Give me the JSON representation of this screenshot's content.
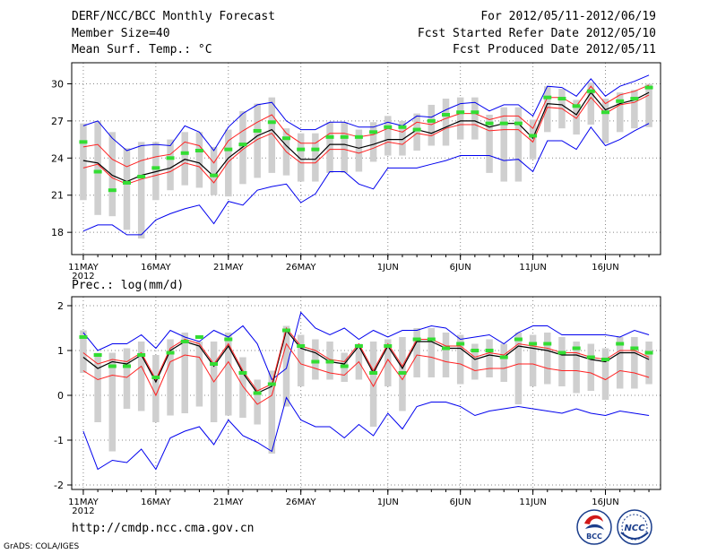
{
  "header": {
    "title": "DERF/NCC/BCC Monthly Forecast",
    "member_size": "Member Size=40",
    "variable": "Mean Surf. Temp.: °C",
    "period": "For 2012/05/11-2012/06/19",
    "started": "Fcst Started Refer Date 2012/05/10",
    "produced": "Fcst Produced Date 2012/05/11"
  },
  "footer": {
    "url": "http://cmdp.ncc.cma.gov.cn",
    "grads": "GrADS: COLA/IGES",
    "logo_bcc": "BCC",
    "logo_ncc": "NCC"
  },
  "colors": {
    "spread_box": "#cfcfcf",
    "observation": "#33dd33",
    "ensemble_mean": "#000000",
    "member_bounds": "#ff2222",
    "envelope": "#0000ee",
    "grid": "#888888"
  },
  "chart_data": [
    {
      "type": "line",
      "title": "Mean Surf. Temp.: °C",
      "x_start_label": "11MAY",
      "x_year": "2012",
      "x_tick_labels": [
        "11MAY",
        "16MAY",
        "21MAY",
        "26MAY",
        "1JUN",
        "6JUN",
        "11JUN",
        "16JUN"
      ],
      "x_tick_days": [
        0,
        5,
        10,
        15,
        21,
        26,
        31,
        36
      ],
      "xlim": [
        -0.8,
        39.8
      ],
      "ylim": [
        16.2,
        31.7
      ],
      "yticks": [
        18,
        21,
        24,
        27,
        30
      ],
      "days": 40,
      "series": [
        {
          "name": "envelope_max",
          "values": [
            26.6,
            27.0,
            25.6,
            24.6,
            25.0,
            25.1,
            25.0,
            26.6,
            26.1,
            24.6,
            26.5,
            27.6,
            28.3,
            28.5,
            27.0,
            26.3,
            26.3,
            26.9,
            26.9,
            26.5,
            26.5,
            26.9,
            26.6,
            27.4,
            27.3,
            27.9,
            28.4,
            28.5,
            27.8,
            28.3,
            28.3,
            27.4,
            29.8,
            29.7,
            29.0,
            30.4,
            29.0,
            29.8,
            30.2,
            30.7
          ]
        },
        {
          "name": "member_upper",
          "values": [
            24.9,
            25.1,
            23.9,
            23.3,
            23.8,
            24.1,
            24.3,
            25.3,
            25.0,
            23.6,
            25.4,
            26.2,
            26.9,
            27.5,
            26.0,
            25.2,
            25.2,
            26.0,
            26.0,
            25.7,
            25.9,
            26.4,
            26.1,
            26.9,
            26.7,
            27.2,
            27.6,
            27.6,
            27.1,
            27.4,
            27.4,
            26.4,
            28.9,
            28.9,
            28.2,
            29.8,
            28.4,
            29.1,
            29.4,
            29.9
          ]
        },
        {
          "name": "ensemble_mean",
          "values": [
            23.8,
            23.6,
            22.6,
            22.1,
            22.6,
            22.9,
            23.2,
            23.9,
            23.6,
            22.5,
            24.0,
            24.9,
            25.8,
            26.3,
            25.0,
            23.9,
            23.9,
            25.1,
            25.1,
            24.8,
            25.1,
            25.5,
            25.5,
            26.3,
            26.0,
            26.5,
            27.0,
            27.0,
            26.5,
            26.8,
            26.8,
            25.6,
            28.4,
            28.3,
            27.5,
            29.3,
            27.9,
            28.4,
            28.7,
            29.3
          ]
        },
        {
          "name": "member_lower",
          "values": [
            23.2,
            23.5,
            22.4,
            21.9,
            22.3,
            22.6,
            22.9,
            23.6,
            23.3,
            22.0,
            23.7,
            24.7,
            25.5,
            26.0,
            24.5,
            23.6,
            23.6,
            24.7,
            24.7,
            24.4,
            24.8,
            25.3,
            25.1,
            26.0,
            25.8,
            26.4,
            26.7,
            26.7,
            26.2,
            26.3,
            26.3,
            25.3,
            28.1,
            28.0,
            27.2,
            28.9,
            27.6,
            28.3,
            28.5,
            29.1
          ]
        },
        {
          "name": "envelope_min",
          "values": [
            18.1,
            18.6,
            18.6,
            17.8,
            17.8,
            19.0,
            19.5,
            19.9,
            20.2,
            18.7,
            20.5,
            20.2,
            21.4,
            21.7,
            21.9,
            20.4,
            21.1,
            22.9,
            22.9,
            21.9,
            21.5,
            23.2,
            23.2,
            23.2,
            23.5,
            23.8,
            24.2,
            24.2,
            24.2,
            23.8,
            23.9,
            22.9,
            25.4,
            25.4,
            24.7,
            26.5,
            25.0,
            25.5,
            26.2,
            26.8
          ]
        },
        {
          "name": "observed",
          "values": [
            25.3,
            22.9,
            21.4,
            22.0,
            22.5,
            23.2,
            24.0,
            24.4,
            24.6,
            22.6,
            24.7,
            25.1,
            26.2,
            26.9,
            25.6,
            24.7,
            24.7,
            25.7,
            25.7,
            25.7,
            26.1,
            26.5,
            26.5,
            26.3,
            27.0,
            27.5,
            27.7,
            27.7,
            26.8,
            26.8,
            26.8,
            25.8,
            28.9,
            28.8,
            28.2,
            29.4,
            27.7,
            28.6,
            28.8,
            29.7
          ]
        }
      ],
      "box_top": [
        26.8,
        27.0,
        26.1,
        24.8,
        25.3,
        25.3,
        25.5,
        26.1,
        26.1,
        24.9,
        26.3,
        27.8,
        28.4,
        28.9,
        26.4,
        26.0,
        26.0,
        26.9,
        26.9,
        26.3,
        26.9,
        27.4,
        27.0,
        27.6,
        28.3,
        28.8,
        28.9,
        28.9,
        27.5,
        28.1,
        28.1,
        27.1,
        29.8,
        29.6,
        28.7,
        30.1,
        28.8,
        29.3,
        29.5,
        30.0
      ],
      "box_bottom": [
        20.6,
        19.4,
        19.3,
        18.2,
        17.5,
        20.6,
        21.4,
        21.8,
        21.6,
        21.0,
        20.9,
        21.9,
        22.4,
        22.8,
        22.6,
        22.1,
        22.1,
        22.8,
        22.8,
        22.9,
        23.7,
        24.2,
        24.2,
        24.6,
        25.0,
        25.0,
        25.5,
        25.5,
        22.8,
        22.1,
        22.1,
        23.9,
        26.1,
        26.4,
        25.9,
        26.7,
        25.2,
        26.1,
        26.4,
        26.5
      ]
    },
    {
      "type": "line",
      "title": "Prec.: log(mm/d)",
      "x_start_label": "11MAY",
      "x_year": "2012",
      "x_tick_labels": [
        "11MAY",
        "16MAY",
        "21MAY",
        "26MAY",
        "1JUN",
        "6JUN",
        "11JUN",
        "16JUN"
      ],
      "x_tick_days": [
        0,
        5,
        10,
        15,
        21,
        26,
        31,
        36
      ],
      "xlim": [
        -0.8,
        39.8
      ],
      "ylim": [
        -2.1,
        2.2
      ],
      "yticks": [
        -2,
        -1,
        0,
        1,
        2
      ],
      "days": 40,
      "series": [
        {
          "name": "envelope_max",
          "values": [
            1.4,
            1.0,
            1.15,
            1.15,
            1.35,
            1.05,
            1.45,
            1.3,
            1.2,
            1.45,
            1.3,
            1.55,
            1.15,
            0.35,
            0.6,
            1.85,
            1.5,
            1.35,
            1.5,
            1.25,
            1.45,
            1.3,
            1.45,
            1.45,
            1.55,
            1.5,
            1.25,
            1.3,
            1.35,
            1.15,
            1.4,
            1.55,
            1.55,
            1.35,
            1.35,
            1.35,
            1.35,
            1.3,
            1.45,
            1.35
          ]
        },
        {
          "name": "ensemble_mean",
          "values": [
            0.85,
            0.6,
            0.75,
            0.7,
            0.9,
            0.3,
            1.0,
            1.2,
            1.1,
            0.65,
            1.1,
            0.5,
            0.05,
            0.2,
            1.45,
            1.05,
            0.95,
            0.75,
            0.7,
            1.1,
            0.5,
            1.1,
            0.6,
            1.2,
            1.2,
            1.05,
            1.05,
            0.8,
            0.9,
            0.85,
            1.1,
            1.05,
            1.0,
            0.9,
            0.9,
            0.8,
            0.75,
            0.95,
            0.95,
            0.8
          ]
        },
        {
          "name": "member_upper",
          "values": [
            0.95,
            0.7,
            0.8,
            0.75,
            0.95,
            0.35,
            1.05,
            1.25,
            1.15,
            0.7,
            1.15,
            0.55,
            0.1,
            0.25,
            1.5,
            1.1,
            1.0,
            0.8,
            0.75,
            1.15,
            0.55,
            1.15,
            0.65,
            1.25,
            1.25,
            1.1,
            1.1,
            0.85,
            0.95,
            0.9,
            1.15,
            1.1,
            1.05,
            0.95,
            0.95,
            0.85,
            0.8,
            1.0,
            1.0,
            0.85
          ]
        },
        {
          "name": "member_lower",
          "values": [
            0.55,
            0.35,
            0.45,
            0.4,
            0.65,
            0.0,
            0.75,
            0.9,
            0.85,
            0.3,
            0.75,
            0.2,
            -0.2,
            0.0,
            1.15,
            0.7,
            0.6,
            0.5,
            0.45,
            0.75,
            0.2,
            0.8,
            0.35,
            0.9,
            0.85,
            0.75,
            0.7,
            0.55,
            0.6,
            0.6,
            0.7,
            0.7,
            0.6,
            0.55,
            0.55,
            0.5,
            0.35,
            0.55,
            0.5,
            0.4
          ]
        },
        {
          "name": "envelope_min",
          "values": [
            -0.8,
            -1.65,
            -1.45,
            -1.5,
            -1.2,
            -1.65,
            -0.95,
            -0.8,
            -0.7,
            -1.1,
            -0.55,
            -0.9,
            -1.05,
            -1.25,
            -0.05,
            -0.55,
            -0.7,
            -0.7,
            -0.95,
            -0.65,
            -0.9,
            -0.4,
            -0.75,
            -0.25,
            -0.15,
            -0.15,
            -0.25,
            -0.45,
            -0.35,
            -0.3,
            -0.25,
            -0.3,
            -0.35,
            -0.4,
            -0.3,
            -0.4,
            -0.45,
            -0.35,
            -0.4,
            -0.45
          ]
        },
        {
          "name": "observed",
          "values": [
            1.3,
            0.9,
            0.65,
            0.65,
            0.9,
            0.4,
            0.95,
            1.2,
            1.3,
            0.7,
            1.25,
            0.5,
            0.05,
            0.25,
            1.45,
            1.1,
            0.75,
            0.75,
            0.65,
            1.1,
            0.5,
            1.1,
            0.5,
            1.25,
            1.25,
            1.05,
            1.15,
            1.0,
            1.0,
            0.85,
            1.25,
            1.15,
            1.15,
            0.95,
            1.05,
            0.85,
            0.8,
            1.15,
            1.05,
            0.95
          ]
        }
      ],
      "box_top": [
        1.45,
        0.95,
        0.95,
        1.05,
        1.2,
        0.9,
        1.25,
        1.4,
        1.2,
        1.2,
        1.4,
        0.85,
        0.35,
        0.55,
        1.55,
        1.35,
        1.25,
        1.2,
        0.95,
        1.15,
        1.2,
        1.25,
        1.3,
        1.5,
        1.5,
        1.4,
        1.35,
        1.15,
        1.25,
        1.15,
        1.4,
        1.35,
        1.4,
        1.3,
        1.2,
        1.15,
        1.05,
        1.3,
        1.3,
        1.2
      ],
      "box_bottom": [
        0.5,
        -0.6,
        -1.25,
        -0.3,
        -0.35,
        -0.6,
        -0.45,
        -0.4,
        -0.25,
        -0.6,
        -0.45,
        -0.5,
        -0.65,
        -1.3,
        -0.25,
        0.2,
        0.35,
        0.35,
        0.3,
        0.35,
        -0.7,
        0.2,
        -0.35,
        0.4,
        0.4,
        0.4,
        0.25,
        0.35,
        0.4,
        0.3,
        -0.2,
        0.2,
        0.25,
        0.2,
        0.05,
        0.1,
        -0.1,
        0.15,
        0.15,
        0.25
      ]
    }
  ]
}
